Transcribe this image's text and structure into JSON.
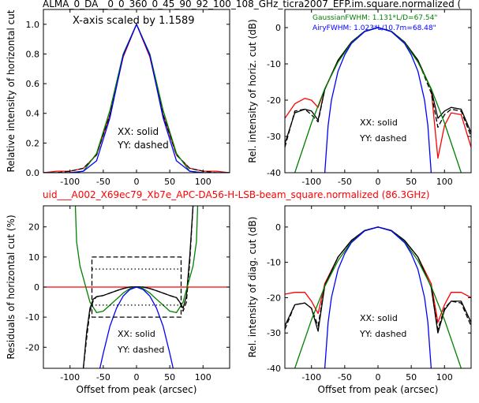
{
  "header": {
    "title": "ALMA_0_DA__0_0_360_0_45_90_92_100_108_GHz_ticra2007_EFP.im.square.normalized (",
    "subtitle": "uid___A002_X69ec79_Xb7e_APC-DA56-H-LSB-beam_square.normalized (86.3GHz)",
    "subtitle_color": "#ff0000"
  },
  "colors": {
    "red": "#ff0000",
    "black": "#000000",
    "green": "#008000",
    "blue": "#0000ff"
  },
  "chart_data": [
    {
      "id": "p1",
      "type": "line",
      "xlabel": "",
      "ylabel": "Relative intensity of horizontal cut",
      "xlim": [
        -140,
        140
      ],
      "ylim": [
        0,
        1.1
      ],
      "xticks": [
        -100,
        -50,
        0,
        50,
        100
      ],
      "yticks": [
        0.0,
        0.2,
        0.4,
        0.6,
        0.8,
        1.0
      ],
      "annotations": [
        "X-axis scaled by 1.1589",
        "XX: solid",
        "YY: dashed"
      ],
      "series": [
        {
          "color": "red",
          "dash": false,
          "x": [
            -140,
            -120,
            -100,
            -80,
            -60,
            -40,
            -20,
            0,
            20,
            40,
            60,
            80,
            100,
            120,
            140
          ],
          "y": [
            0.0,
            0.01,
            0.01,
            0.03,
            0.12,
            0.39,
            0.78,
            1.0,
            0.78,
            0.39,
            0.12,
            0.03,
            0.01,
            0.01,
            0.0
          ]
        },
        {
          "color": "black",
          "dash": true,
          "x": [
            -140,
            -120,
            -100,
            -80,
            -60,
            -40,
            -20,
            0,
            20,
            40,
            60,
            80,
            100,
            120,
            140
          ],
          "y": [
            0.0,
            0.0,
            0.01,
            0.03,
            0.12,
            0.39,
            0.79,
            1.0,
            0.79,
            0.39,
            0.12,
            0.03,
            0.01,
            0.0,
            0.0
          ]
        },
        {
          "color": "green",
          "dash": false,
          "x": [
            -140,
            -120,
            -100,
            -80,
            -60,
            -40,
            -20,
            0,
            20,
            40,
            60,
            80,
            100,
            120,
            140
          ],
          "y": [
            0.0,
            0.0,
            0.0,
            0.01,
            0.13,
            0.42,
            0.8,
            1.0,
            0.8,
            0.42,
            0.13,
            0.01,
            0.0,
            0.0,
            0.0
          ]
        },
        {
          "color": "blue",
          "dash": false,
          "x": [
            -140,
            -120,
            -100,
            -80,
            -60,
            -40,
            -20,
            0,
            20,
            40,
            60,
            80,
            100,
            120,
            140
          ],
          "y": [
            0.0,
            0.0,
            0.0,
            0.01,
            0.08,
            0.37,
            0.79,
            1.0,
            0.79,
            0.37,
            0.08,
            0.01,
            0.0,
            0.0,
            0.0
          ]
        }
      ]
    },
    {
      "id": "p2",
      "type": "line",
      "xlabel": "",
      "ylabel": "Rel. intensity of horiz. cut (dB)",
      "xlim": [
        -140,
        140
      ],
      "ylim": [
        -40,
        5
      ],
      "xticks": [
        -100,
        -50,
        0,
        50,
        100
      ],
      "yticks": [
        0,
        -10,
        -20,
        -30,
        -40
      ],
      "annotations": [
        "GaussianFWHM: 1.131*L/D=67.54\"",
        "AiryFWHM: 1.023*L/10.7m=68.48\"",
        "XX: solid",
        "YY: dashed"
      ],
      "series": [
        {
          "color": "red",
          "dash": false,
          "x": [
            -140,
            -125,
            -110,
            -100,
            -90,
            -80,
            -60,
            -40,
            -20,
            0,
            20,
            40,
            60,
            80,
            90,
            100,
            110,
            125,
            140
          ],
          "y": [
            -25,
            -21,
            -19.5,
            -20,
            -22,
            -17,
            -9,
            -4,
            -1,
            0,
            -1,
            -4,
            -9,
            -17,
            -36,
            -27,
            -23.5,
            -24,
            -33
          ]
        },
        {
          "color": "black",
          "dash": true,
          "x": [
            -140,
            -125,
            -110,
            -100,
            -90,
            -80,
            -60,
            -40,
            -20,
            0,
            20,
            40,
            60,
            80,
            90,
            100,
            110,
            125,
            140
          ],
          "y": [
            -33,
            -23,
            -22.5,
            -24,
            -26,
            -17,
            -9,
            -4,
            -1,
            0,
            -1,
            -4,
            -9,
            -18,
            -27.5,
            -24,
            -22.5,
            -23,
            -30
          ]
        },
        {
          "color": "black",
          "dash": false,
          "x": [
            -140,
            -125,
            -110,
            -100,
            -90,
            -80,
            -60,
            -40,
            -20,
            0,
            20,
            40,
            60,
            80,
            90,
            100,
            110,
            125,
            140
          ],
          "y": [
            -32,
            -23.5,
            -22.5,
            -23,
            -25.5,
            -17,
            -9,
            -4,
            -1,
            0,
            -1,
            -4,
            -9,
            -17,
            -25,
            -23,
            -22,
            -22.5,
            -29
          ]
        },
        {
          "color": "green",
          "dash": false,
          "x": [
            -125,
            -100,
            -80,
            -60,
            -40,
            -20,
            0,
            20,
            40,
            60,
            80,
            100,
            125
          ],
          "y": [
            -40,
            -26.3,
            -16.8,
            -9.5,
            -4.2,
            -1.05,
            0,
            -1.05,
            -4.2,
            -9.5,
            -16.8,
            -26.3,
            -40
          ]
        },
        {
          "color": "blue",
          "dash": false,
          "x": [
            -80,
            -75,
            -70,
            -60,
            -50,
            -40,
            -20,
            0,
            20,
            40,
            50,
            60,
            70,
            75,
            80
          ],
          "y": [
            -40,
            -27,
            -20,
            -12,
            -7.5,
            -4.4,
            -1.1,
            0,
            -1.1,
            -4.4,
            -7.5,
            -12,
            -20,
            -27,
            -40
          ]
        }
      ]
    },
    {
      "id": "p3",
      "type": "line",
      "xlabel": "Offset from peak (arcsec)",
      "ylabel": "Residuals of horizontal cut (%)",
      "xlim": [
        -140,
        140
      ],
      "ylim": [
        -27,
        27
      ],
      "xticks": [
        -100,
        -50,
        0,
        50,
        100
      ],
      "yticks": [
        20,
        10,
        0,
        -10,
        -20
      ],
      "annotations": [
        "XX: solid",
        "YY: dashed"
      ],
      "series": [
        {
          "color": "red",
          "dash": false,
          "x": [
            -140,
            140
          ],
          "y": [
            0,
            0
          ]
        },
        {
          "color": "black",
          "dash": false,
          "x": [
            -80,
            -75,
            -70,
            -65,
            -60,
            -50,
            -40,
            -30,
            -20,
            -10,
            0,
            10,
            20,
            30,
            40,
            50,
            60,
            65,
            70,
            75,
            80,
            85
          ],
          "y": [
            -27,
            -15,
            -7,
            -4,
            -3.2,
            -2.8,
            -2,
            -1.2,
            -0.5,
            0,
            0.1,
            0,
            -0.5,
            -1.2,
            -2,
            -2.8,
            -3.5,
            -5,
            -7,
            -3,
            10,
            27
          ]
        },
        {
          "color": "black",
          "dash": true,
          "x": [
            -80,
            -75,
            -70,
            -65,
            -60,
            -50,
            -40,
            -30,
            -20,
            -10,
            0,
            10,
            20,
            30,
            40,
            50,
            60,
            65,
            70,
            75,
            80,
            85
          ],
          "y": [
            -27,
            -17,
            -8,
            -4.5,
            -3.2,
            -2.8,
            -2,
            -1.2,
            -0.5,
            0,
            0.1,
            0,
            -0.5,
            -1.2,
            -2,
            -2.8,
            -3.5,
            -5,
            -8,
            -5,
            8,
            27
          ]
        },
        {
          "color": "green",
          "dash": false,
          "x": [
            -92,
            -90,
            -85,
            -80,
            -75,
            -70,
            -60,
            -50,
            -40,
            -30,
            -20,
            -10,
            0,
            10,
            20,
            30,
            40,
            50,
            60,
            70,
            75,
            80,
            85,
            90,
            92
          ],
          "y": [
            27,
            15,
            7,
            3,
            -1,
            -5,
            -8.5,
            -8,
            -6,
            -4,
            -2,
            -0.5,
            0,
            -0.5,
            -2,
            -4,
            -6,
            -8,
            -8.5,
            -5,
            -1,
            3,
            7,
            15,
            27
          ]
        },
        {
          "color": "blue",
          "dash": false,
          "x": [
            -55,
            -50,
            -40,
            -30,
            -20,
            -10,
            0,
            10,
            20,
            30,
            40,
            50,
            55
          ],
          "y": [
            -27,
            -22,
            -13,
            -7,
            -3,
            -0.8,
            0,
            -0.8,
            -3,
            -7,
            -13,
            -22,
            -27
          ]
        },
        {
          "color": "black",
          "dash": "box",
          "x": [
            -67,
            67,
            67,
            -67,
            -67
          ],
          "y": [
            10,
            10,
            -10,
            -10,
            10
          ]
        },
        {
          "color": "black",
          "dash": "dot",
          "x": [
            -67,
            67
          ],
          "y": [
            6,
            6
          ]
        },
        {
          "color": "black",
          "dash": "dot",
          "x": [
            -67,
            67
          ],
          "y": [
            -6,
            -6
          ]
        }
      ]
    },
    {
      "id": "p4",
      "type": "line",
      "xlabel": "Offset from peak (arcsec)",
      "ylabel": "Rel. intensity of diag. cut (dB)",
      "xlim": [
        -140,
        140
      ],
      "ylim": [
        -40,
        6
      ],
      "xticks": [
        -100,
        -50,
        0,
        50,
        100
      ],
      "yticks": [
        0,
        -10,
        -20,
        -30,
        -40
      ],
      "annotations": [
        "XX: solid",
        "YY: dashed"
      ],
      "series": [
        {
          "color": "red",
          "dash": false,
          "x": [
            -140,
            -125,
            -110,
            -100,
            -90,
            -80,
            -60,
            -40,
            -20,
            0,
            20,
            40,
            60,
            80,
            90,
            100,
            110,
            125,
            140
          ],
          "y": [
            -19,
            -18.5,
            -18.5,
            -21,
            -24.5,
            -16,
            -8.5,
            -3.8,
            -1,
            0,
            -1,
            -3.8,
            -8.5,
            -16,
            -27,
            -22,
            -18.5,
            -18.5,
            -20
          ]
        },
        {
          "color": "black",
          "dash": true,
          "x": [
            -140,
            -125,
            -110,
            -100,
            -90,
            -80,
            -60,
            -40,
            -20,
            0,
            20,
            40,
            60,
            80,
            90,
            100,
            110,
            125,
            140
          ],
          "y": [
            -29,
            -22,
            -21.5,
            -23,
            -28,
            -16.5,
            -8.5,
            -3.8,
            -1,
            0,
            -1,
            -3.8,
            -8.5,
            -17,
            -29,
            -23,
            -21,
            -21.5,
            -28
          ]
        },
        {
          "color": "black",
          "dash": false,
          "x": [
            -140,
            -125,
            -110,
            -100,
            -90,
            -80,
            -60,
            -40,
            -20,
            0,
            20,
            40,
            60,
            80,
            90,
            100,
            110,
            125,
            140
          ],
          "y": [
            -28,
            -22,
            -21.5,
            -23,
            -29.5,
            -16.5,
            -8.5,
            -3.8,
            -1,
            0,
            -1,
            -3.8,
            -8.5,
            -17,
            -30,
            -23.5,
            -21,
            -21,
            -27
          ]
        },
        {
          "color": "green",
          "dash": false,
          "x": [
            -125,
            -100,
            -80,
            -60,
            -40,
            -20,
            0,
            20,
            40,
            60,
            80,
            100,
            125
          ],
          "y": [
            -40,
            -26.3,
            -16.8,
            -9.5,
            -4.2,
            -1.05,
            0,
            -1.05,
            -4.2,
            -9.5,
            -16.8,
            -26.3,
            -40
          ]
        },
        {
          "color": "blue",
          "dash": false,
          "x": [
            -80,
            -75,
            -70,
            -60,
            -50,
            -40,
            -20,
            0,
            20,
            40,
            50,
            60,
            70,
            75,
            80
          ],
          "y": [
            -40,
            -27,
            -20,
            -12,
            -7.5,
            -4.4,
            -1.1,
            0,
            -1.1,
            -4.4,
            -7.5,
            -12,
            -20,
            -27,
            -40
          ]
        }
      ]
    }
  ]
}
